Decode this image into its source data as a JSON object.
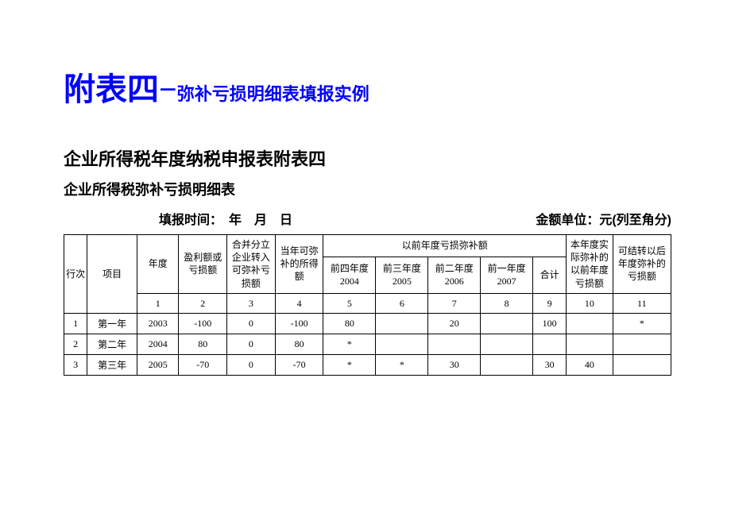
{
  "title": {
    "big": "附表四−",
    "small": "弥补亏损明细表填报实例"
  },
  "subtitle1": "企业所得税年度纳税申报表附表四",
  "subtitle2": "企业所得税弥补亏损明细表",
  "meta": {
    "leftLabel": "填报时间：　年　月　日",
    "rightLabel": "金额单位：元(列至角分)"
  },
  "headers": {
    "rowNo": "行次",
    "item": "项目",
    "year": "年度",
    "profitLoss": "盈利额或亏损额",
    "merge": "合并分立企业转入可弥补亏损额",
    "currLoss": "当年可弥补的所得额",
    "priorGroup": "以前年度亏损弥补额",
    "q4": "前四年度2004",
    "q3": "前三年度2005",
    "q2": "前二年度2006",
    "q1": "前一年度2007",
    "sum": "合计",
    "actual": "本年度实际弥补的以前年度亏损额",
    "carry": "可结转以后年度弥补的亏损额"
  },
  "colNums": {
    "c1": "1",
    "c2": "2",
    "c3": "3",
    "c4": "4",
    "c5": "5",
    "c6": "6",
    "c7": "7",
    "c8": "8",
    "c9": "9",
    "c10": "10",
    "c11": "11"
  },
  "rows": [
    {
      "no": "1",
      "item": "第一年",
      "year": "2003",
      "pl": "-100",
      "merge": "0",
      "curr": "-100",
      "q4": "80",
      "q3": "",
      "q2": "20",
      "q1": "",
      "sum": "100",
      "actual": "",
      "carry": "*"
    },
    {
      "no": "2",
      "item": "第二年",
      "year": "2004",
      "pl": "80",
      "merge": "0",
      "curr": "80",
      "q4": "*",
      "q3": "",
      "q2": "",
      "q1": "",
      "sum": "",
      "actual": "",
      "carry": ""
    },
    {
      "no": "3",
      "item": "第三年",
      "year": "2005",
      "pl": "-70",
      "merge": "0",
      "curr": "-70",
      "q4": "*",
      "q3": "*",
      "q2": "30",
      "q1": "",
      "sum": "30",
      "actual": "40",
      "carry": ""
    }
  ]
}
